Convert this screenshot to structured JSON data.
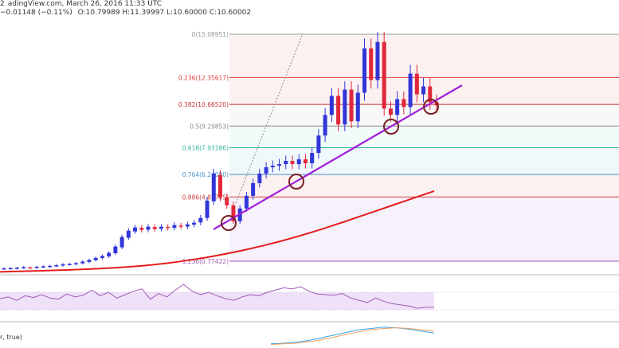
{
  "header": {
    "left_fragment": "2",
    "source_fragment": "adingView.com, March 26, 2016 11:33 UTC",
    "change": "−0.01148 (−0.11%)",
    "ohlc": "O:10.79989 H:11.39997 L:10.60000 C:10.60002"
  },
  "indicator_label": "r, true)",
  "colors": {
    "up": "#3036d8",
    "down": "#e0283a",
    "trendline": "#a020d8",
    "moving_average": "#e41c1c",
    "circle": "#7a1f24",
    "rsi_line": "#a05ab8",
    "rsi_band": "#efe1f7",
    "macd_a": "#3aa3e8",
    "macd_b": "#f0a060"
  },
  "chart_data": {
    "type": "candlestick",
    "fib_levels": [
      {
        "ratio": "0",
        "price": "15.08951",
        "label": "0(15.08951)",
        "color": "#999999"
      },
      {
        "ratio": "0.236",
        "price": "12.35617",
        "label": "0.236(12.35617)",
        "color": "#e03a3a"
      },
      {
        "ratio": "0.382",
        "price": "10.66520",
        "label": "0.382(10.66520)",
        "color": "#c43030"
      },
      {
        "ratio": "0.5",
        "price": "9.29853",
        "label": "0.5(9.29853)",
        "color": "#888888"
      },
      {
        "ratio": "0.618",
        "price": "7.93186",
        "label": "0.618(7.93186)",
        "color": "#2db39b"
      },
      {
        "ratio": "0.764",
        "price": "6.24090",
        "label": "0.764(6.24090)",
        "color": "#4a90c8"
      },
      {
        "ratio": "0.886",
        "price": "4.82705",
        "label": "0.886(4.82705)",
        "color": "#d34040"
      },
      {
        "ratio": "1.236",
        "price": "0.77422",
        "label": "1.236(0.77422)",
        "color": "#9b59b6"
      }
    ],
    "candles": [
      {
        "o": 0.3,
        "c": 0.32
      },
      {
        "o": 0.31,
        "c": 0.34
      },
      {
        "o": 0.33,
        "c": 0.36
      },
      {
        "o": 0.35,
        "c": 0.4
      },
      {
        "o": 0.38,
        "c": 0.36
      },
      {
        "o": 0.36,
        "c": 0.42
      },
      {
        "o": 0.41,
        "c": 0.45
      },
      {
        "o": 0.44,
        "c": 0.48
      },
      {
        "o": 0.47,
        "c": 0.52
      },
      {
        "o": 0.5,
        "c": 0.58
      },
      {
        "o": 0.57,
        "c": 0.6
      },
      {
        "o": 0.59,
        "c": 0.65
      },
      {
        "o": 0.64,
        "c": 0.75
      },
      {
        "o": 0.73,
        "c": 0.85
      },
      {
        "o": 0.84,
        "c": 0.98
      },
      {
        "o": 0.97,
        "c": 1.1
      },
      {
        "o": 1.08,
        "c": 1.3
      },
      {
        "o": 1.28,
        "c": 1.7
      },
      {
        "o": 1.65,
        "c": 2.3
      },
      {
        "o": 2.25,
        "c": 2.7
      },
      {
        "o": 2.65,
        "c": 2.9
      },
      {
        "o": 2.88,
        "c": 2.75
      },
      {
        "o": 2.76,
        "c": 2.95
      },
      {
        "o": 2.93,
        "c": 2.8
      },
      {
        "o": 2.82,
        "c": 2.95
      },
      {
        "o": 2.94,
        "c": 2.88
      },
      {
        "o": 2.88,
        "c": 3.05
      },
      {
        "o": 3.02,
        "c": 2.96
      },
      {
        "o": 2.96,
        "c": 3.1
      },
      {
        "o": 3.08,
        "c": 3.2
      },
      {
        "o": 3.22,
        "c": 3.5
      },
      {
        "o": 3.5,
        "c": 4.6
      },
      {
        "o": 4.55,
        "c": 6.3
      },
      {
        "o": 6.2,
        "c": 4.8
      },
      {
        "o": 4.8,
        "c": 4.3
      },
      {
        "o": 4.3,
        "c": 3.3
      },
      {
        "o": 3.3,
        "c": 4.1
      },
      {
        "o": 4.1,
        "c": 4.9
      },
      {
        "o": 4.9,
        "c": 5.7
      },
      {
        "o": 5.7,
        "c": 6.3
      },
      {
        "o": 6.3,
        "c": 6.7
      },
      {
        "o": 6.7,
        "c": 6.8
      },
      {
        "o": 6.8,
        "c": 6.9
      },
      {
        "o": 6.9,
        "c": 7.1
      },
      {
        "o": 7.1,
        "c": 6.9
      },
      {
        "o": 6.9,
        "c": 7.2
      },
      {
        "o": 7.2,
        "c": 6.95
      },
      {
        "o": 6.95,
        "c": 7.6
      },
      {
        "o": 7.6,
        "c": 8.7
      },
      {
        "o": 8.7,
        "c": 10.0
      },
      {
        "o": 10.0,
        "c": 11.2
      },
      {
        "o": 11.2,
        "c": 9.4
      },
      {
        "o": 9.4,
        "c": 11.6
      },
      {
        "o": 11.6,
        "c": 9.6
      },
      {
        "o": 9.6,
        "c": 11.4
      },
      {
        "o": 11.4,
        "c": 14.2
      },
      {
        "o": 14.2,
        "c": 12.2
      },
      {
        "o": 12.2,
        "c": 14.6
      },
      {
        "o": 14.6,
        "c": 10.4
      },
      {
        "o": 10.4,
        "c": 10.0
      },
      {
        "o": 10.0,
        "c": 11.0
      },
      {
        "o": 11.0,
        "c": 10.5
      },
      {
        "o": 10.5,
        "c": 12.6
      },
      {
        "o": 12.6,
        "c": 11.3
      },
      {
        "o": 11.3,
        "c": 11.8
      },
      {
        "o": 11.8,
        "c": 10.8
      },
      {
        "o": 10.8,
        "c": 10.6
      }
    ],
    "moving_average": [
      0.1,
      0.12,
      0.14,
      0.16,
      0.18,
      0.2,
      0.22,
      0.25,
      0.28,
      0.31,
      0.35,
      0.39,
      0.44,
      0.5,
      0.57,
      0.65,
      0.74,
      0.84,
      0.95,
      1.07,
      1.2,
      1.34,
      1.49,
      1.65,
      1.82,
      2.0,
      2.19,
      2.39,
      2.6,
      2.82,
      3.05,
      3.28,
      3.52,
      3.76,
      4.0,
      4.24,
      4.48,
      4.72,
      4.96,
      5.2
    ],
    "rsi": [
      55,
      58,
      52,
      60,
      57,
      62,
      56,
      54,
      63,
      58,
      61,
      70,
      60,
      66,
      56,
      62,
      68,
      72,
      54,
      64,
      58,
      70,
      80,
      68,
      62,
      66,
      60,
      55,
      52,
      58,
      62,
      60,
      66,
      70,
      74,
      72,
      76,
      68,
      63,
      62,
      61,
      64,
      56,
      52,
      48,
      56,
      50,
      46,
      44,
      42,
      38,
      40,
      40
    ],
    "macd_a": [
      10,
      12,
      15,
      20,
      28,
      36,
      44,
      52,
      56,
      60,
      58,
      54,
      48,
      42
    ],
    "macd_b": [
      8,
      10,
      12,
      16,
      22,
      30,
      38,
      46,
      52,
      56,
      58,
      56,
      52,
      48
    ]
  }
}
